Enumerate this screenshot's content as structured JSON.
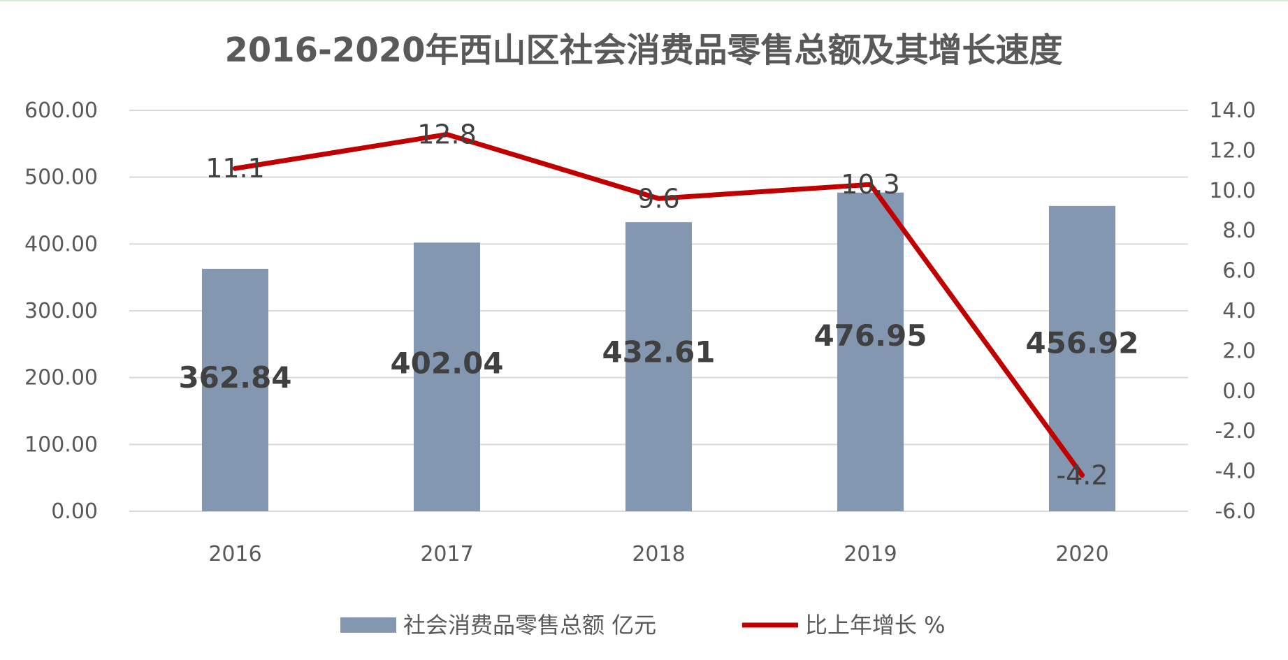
{
  "chart_data": {
    "type": "bar",
    "title": "2016-2020年西山区社会消费品零售总额及其增长速度",
    "categories": [
      "2016",
      "2017",
      "2018",
      "2019",
      "2020"
    ],
    "series": [
      {
        "name": "社会消费品零售总额 亿元",
        "type": "bar",
        "axis": "left",
        "values": [
          362.84,
          402.04,
          432.61,
          476.95,
          456.92
        ],
        "labels": [
          "362.84",
          "402.04",
          "432.61",
          "476.95",
          "456.92"
        ],
        "color": "#8497b0"
      },
      {
        "name": "比上年增长 %",
        "type": "line",
        "axis": "right",
        "values": [
          11.1,
          12.8,
          9.6,
          10.3,
          -4.2
        ],
        "labels": [
          "11.1",
          "12.8",
          "9.6",
          "10.3",
          "-4.2"
        ],
        "color": "#c00000"
      }
    ],
    "y_left": {
      "ylim": [
        0,
        600
      ],
      "ticks": [
        "0.00",
        "100.00",
        "200.00",
        "300.00",
        "400.00",
        "500.00",
        "600.00"
      ]
    },
    "y_right": {
      "ylim": [
        -6,
        14
      ],
      "ticks": [
        "-6.0",
        "-4.0",
        "-2.0",
        "0.0",
        "2.0",
        "4.0",
        "6.0",
        "8.0",
        "10.0",
        "12.0",
        "14.0"
      ]
    },
    "grid": true,
    "legend": "bottom",
    "colors": {
      "gridline": "#d9d9d9",
      "text": "#595959",
      "title": "#595959",
      "bar_label": "#404040",
      "line_label": "#404040"
    }
  }
}
